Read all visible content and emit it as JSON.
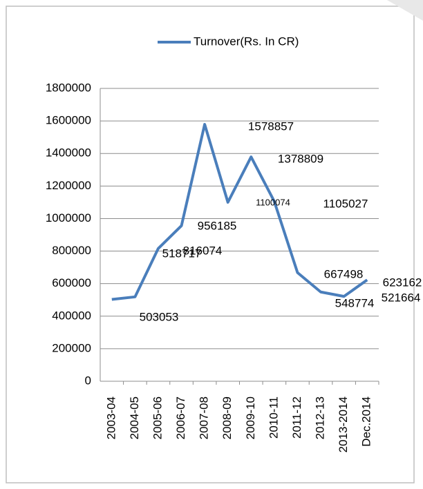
{
  "chart_data": {
    "type": "line",
    "categories": [
      "2003-04",
      "2004-05",
      "2005-06",
      "2006-07",
      "2007-08",
      "2008-09",
      "2009-10",
      "2010-11",
      "2011-12",
      "2012-13",
      "2013-2014",
      "Dec.2014"
    ],
    "series": [
      {
        "name": "Turnover(Rs. In CR)",
        "color": "#4a7ebb",
        "values": [
          503053,
          518717,
          816074,
          956185,
          1578857,
          1100074,
          1378809,
          1105027,
          667498,
          548774,
          521664,
          623162
        ]
      }
    ],
    "ylim": [
      0,
      1800000
    ],
    "yticks": [
      0,
      200000,
      400000,
      600000,
      800000,
      1000000,
      1200000,
      1400000,
      1600000,
      1800000
    ],
    "grid": true,
    "legend": "top"
  }
}
